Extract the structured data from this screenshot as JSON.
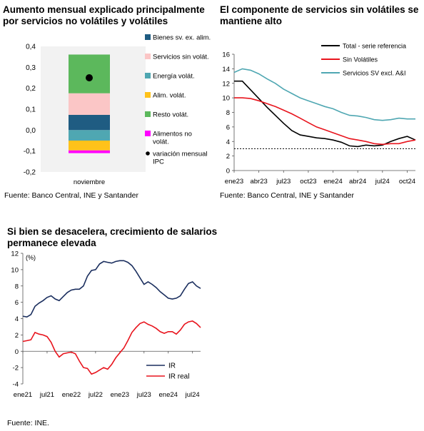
{
  "charts": [
    {
      "title_lines": [
        "Aumento mensual explicado principalmente",
        "por servicios no volátiles y volátiles"
      ],
      "source": "Fuente: Banco Central, INE y Santander"
    },
    {
      "title_lines": [
        "El componente de servicios sin volátiles se",
        "mantiene alto"
      ],
      "source": "Fuente: Banco Central, INE y Santander"
    },
    {
      "title_lines": [
        "Si bien se desacelera, crecimiento de salarios",
        "permanece elevada"
      ],
      "source": "Fuente: INE."
    }
  ],
  "chart_data": [
    {
      "type": "bar",
      "stacked": true,
      "categories": [
        "noviembre"
      ],
      "ylim": [
        -0.2,
        0.4
      ],
      "yticks": [
        "0,4",
        "0,3",
        "0,2",
        "0,1",
        "0,0",
        "-0,1",
        "-0,2"
      ],
      "ytick_values": [
        0.4,
        0.3,
        0.2,
        0.1,
        0.0,
        -0.1,
        -0.2
      ],
      "series": [
        {
          "name": "Bienes sv. ex. alim.",
          "values": [
            0.073
          ],
          "color": "#1f5c82"
        },
        {
          "name": "Servicios sin volát.",
          "values": [
            0.103
          ],
          "color": "#fbc6c6"
        },
        {
          "name": "Energía volát.",
          "values": [
            -0.05
          ],
          "color": "#4fa7b2"
        },
        {
          "name": "Alim. volát.",
          "values": [
            -0.047
          ],
          "color": "#ffc21a"
        },
        {
          "name": "Resto volát.",
          "values": [
            0.185
          ],
          "color": "#5cb85c"
        },
        {
          "name": "Alimentos no volát.",
          "values": [
            -0.013
          ],
          "color": "#ff00ff"
        }
      ],
      "markers": [
        {
          "name": "variación mensual IPC",
          "values": [
            0.25
          ],
          "color": "#000000"
        }
      ],
      "legend_entries": [
        {
          "label": "Bienes sv. ex. alim.",
          "color": "#1f5c82",
          "kind": "square"
        },
        {
          "label": "Servicios sin volát.",
          "color": "#fbc6c6",
          "kind": "square"
        },
        {
          "label": "Energía volát.",
          "color": "#4fa7b2",
          "kind": "square"
        },
        {
          "label": "Alim. volát.",
          "color": "#ffc21a",
          "kind": "square"
        },
        {
          "label": "Resto volát.",
          "color": "#5cb85c",
          "kind": "square"
        },
        {
          "label": "Alimentos no volát.",
          "lines": [
            "Alimentos no",
            "volát."
          ],
          "color": "#ff00ff",
          "kind": "square"
        },
        {
          "label": "variación mensual IPC",
          "lines": [
            "variación mensual",
            "IPC"
          ],
          "color": "#000000",
          "kind": "dot"
        }
      ],
      "legend_placement": "right",
      "grid": false
    },
    {
      "type": "line",
      "ylim": [
        0,
        16
      ],
      "yticks": [
        0,
        2,
        4,
        6,
        8,
        10,
        12,
        14,
        16
      ],
      "xtick_labels": [
        "ene23",
        "abr23",
        "jul23",
        "oct23",
        "ene24",
        "abr24",
        "jul24",
        "oct24"
      ],
      "xtick_index": [
        0,
        3,
        6,
        9,
        12,
        15,
        18,
        21
      ],
      "x": [
        "ene23",
        "feb23",
        "mar23",
        "abr23",
        "may23",
        "jun23",
        "jul23",
        "ago23",
        "sep23",
        "oct23",
        "nov23",
        "dic23",
        "ene24",
        "feb24",
        "mar24",
        "abr24",
        "may24",
        "jun24",
        "jul24",
        "ago24",
        "sep24",
        "oct24",
        "nov24"
      ],
      "series": [
        {
          "name": "Total - serie referencia",
          "color": "#000000",
          "values": [
            12.3,
            12.3,
            11.1,
            9.9,
            8.7,
            7.6,
            6.5,
            5.5,
            4.9,
            4.7,
            4.5,
            4.4,
            4.2,
            3.9,
            3.4,
            3.3,
            3.5,
            3.4,
            3.5,
            4.0,
            4.4,
            4.7,
            4.2
          ]
        },
        {
          "name": "Sin Volátiles",
          "color": "#e8141d",
          "values": [
            10.0,
            10.0,
            9.9,
            9.6,
            9.2,
            8.8,
            8.3,
            7.8,
            7.2,
            6.6,
            6.0,
            5.6,
            5.2,
            4.8,
            4.4,
            4.2,
            4.0,
            3.7,
            3.6,
            3.7,
            3.7,
            4.0,
            4.2
          ]
        },
        {
          "name": "Servicios SV excl. A&I",
          "color": "#4fa7b2",
          "values": [
            13.5,
            14.0,
            13.8,
            13.3,
            12.6,
            12.0,
            11.2,
            10.6,
            10.0,
            9.6,
            9.2,
            8.8,
            8.5,
            8.0,
            7.6,
            7.5,
            7.3,
            7.0,
            6.9,
            7.0,
            7.2,
            7.1,
            7.1
          ]
        },
        {
          "name": "",
          "color": "#000000",
          "dashed": true,
          "values": [
            3,
            3,
            3,
            3,
            3,
            3,
            3,
            3,
            3,
            3,
            3,
            3,
            3,
            3,
            3,
            3,
            3,
            3,
            3,
            3,
            3,
            3,
            3
          ]
        }
      ],
      "legend_placement": "top-right",
      "grid": false
    },
    {
      "type": "line",
      "ylabel": "(%)",
      "ylim": [
        -4,
        12
      ],
      "yticks": [
        -4,
        -2,
        0,
        2,
        4,
        6,
        8,
        10,
        12
      ],
      "xtick_labels": [
        "ene21",
        "jul21",
        "ene22",
        "jul22",
        "ene23",
        "jul23",
        "ene24",
        "jul24"
      ],
      "xtick_index": [
        0,
        6,
        12,
        18,
        24,
        30,
        36,
        42
      ],
      "series": [
        {
          "name": "IR",
          "color": "#1a2e5e",
          "values": [
            4.3,
            4.2,
            4.5,
            5.5,
            5.9,
            6.2,
            6.6,
            6.8,
            6.4,
            6.2,
            6.7,
            7.2,
            7.5,
            7.6,
            7.6,
            8.0,
            9.2,
            9.9,
            10.0,
            10.7,
            11.0,
            10.9,
            10.8,
            11.0,
            11.1,
            11.1,
            10.9,
            10.5,
            9.8,
            9.0,
            8.2,
            8.5,
            8.2,
            7.8,
            7.3,
            6.9,
            6.5,
            6.4,
            6.5,
            6.8,
            7.6,
            8.3,
            8.5,
            8.0,
            7.7
          ]
        },
        {
          "name": "IR real",
          "color": "#e8141d",
          "values": [
            1.2,
            1.3,
            1.4,
            2.3,
            2.1,
            2.0,
            1.8,
            1.1,
            0.0,
            -0.7,
            -0.3,
            -0.2,
            -0.1,
            -0.3,
            -1.2,
            -2.0,
            -2.1,
            -2.8,
            -2.6,
            -2.3,
            -2.0,
            -2.2,
            -1.6,
            -0.8,
            -0.2,
            0.4,
            1.3,
            2.3,
            2.9,
            3.4,
            3.6,
            3.3,
            3.1,
            2.8,
            2.4,
            2.2,
            2.4,
            2.4,
            2.1,
            2.6,
            3.3,
            3.6,
            3.7,
            3.4,
            2.9
          ]
        }
      ],
      "legend_placement": "bottom-right",
      "grid": false
    }
  ]
}
